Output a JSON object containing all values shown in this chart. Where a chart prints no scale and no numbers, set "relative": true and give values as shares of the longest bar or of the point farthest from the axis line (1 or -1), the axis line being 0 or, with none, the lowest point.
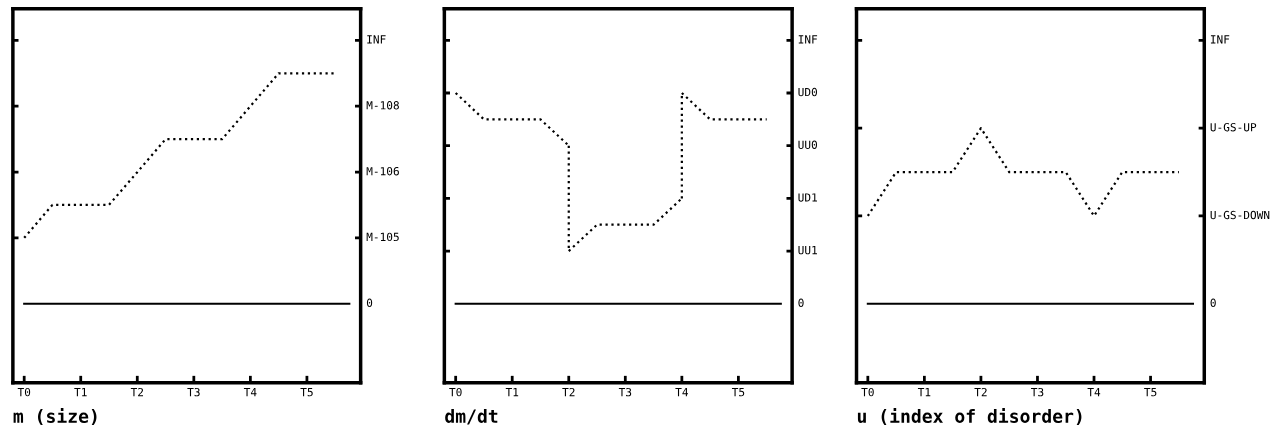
{
  "chart_data": [
    {
      "type": "line",
      "title": "m (size)",
      "relative": true,
      "categories": [
        "T0",
        null,
        "T1",
        null,
        "T2",
        null,
        "T3",
        null,
        "T4",
        null,
        "T5",
        null
      ],
      "series": [
        {
          "color": "#000000",
          "values": [
            0.286,
            0.429,
            0.429,
            0.429,
            0.571,
            0.714,
            0.714,
            0.714,
            0.857,
            1,
            1,
            1
          ]
        }
      ],
      "ref_lines": [
        {
          "axis": "y",
          "value": 0,
          "label": "0",
          "color": "#000000",
          "line_style": "solid"
        },
        {
          "axis": "y",
          "value": 0.286,
          "label": "M-105",
          "color": "#000000"
        },
        {
          "axis": "y",
          "value": 0.571,
          "label": "M-106",
          "color": "#000000"
        },
        {
          "axis": "y",
          "value": 0.857,
          "label": "M-108",
          "color": "#000000"
        },
        {
          "axis": "y",
          "value": 1.143,
          "label": "INF",
          "color": "#000000"
        }
      ],
      "line_style": "dotted",
      "grid": false
    },
    {
      "type": "line",
      "title": "dm/dt",
      "relative": true,
      "categories": [
        "T0",
        null,
        "T1",
        null,
        "T2",
        null,
        "T3",
        null,
        "T4",
        null,
        "T5",
        null
      ],
      "series": [
        {
          "color": "#000000",
          "values": [
            1,
            0.875,
            0.875,
            0.875,
            0.75,
            null,
            null,
            null,
            null,
            null,
            null,
            null
          ]
        },
        {
          "color": "#000000",
          "values": [
            null,
            null,
            null,
            null,
            0.25,
            0.375,
            0.375,
            0.375,
            0.5,
            null,
            null,
            null
          ]
        },
        {
          "color": "#000000",
          "values": [
            null,
            null,
            null,
            null,
            null,
            null,
            null,
            null,
            1,
            0.875,
            0.875,
            0.875
          ]
        }
      ],
      "ref_lines": [
        {
          "axis": "y",
          "value": 0,
          "label": "0",
          "color": "#000000",
          "line_style": "solid"
        },
        {
          "axis": "y",
          "value": 0.25,
          "label": "UU1",
          "color": "#000000"
        },
        {
          "axis": "y",
          "value": 0.5,
          "label": "UD1",
          "color": "#000000"
        },
        {
          "axis": "y",
          "value": 0.75,
          "label": "UU0",
          "color": "#000000"
        },
        {
          "axis": "y",
          "value": 1,
          "label": "UD0",
          "color": "#000000"
        },
        {
          "axis": "y",
          "value": 1.25,
          "label": "INF",
          "color": "#000000"
        }
      ],
      "line_style": "dotted",
      "grid": false
    },
    {
      "type": "line",
      "title": "u (index of disorder)",
      "relative": true,
      "categories": [
        "T0",
        null,
        "T1",
        null,
        "T2",
        null,
        "T3",
        null,
        "T4",
        null,
        "T5",
        null
      ],
      "series": [
        {
          "color": "#000000",
          "values": [
            0.5,
            0.75,
            0.75,
            0.75,
            1,
            0.75,
            0.75,
            0.75,
            0.5,
            0.75,
            0.75,
            0.75
          ]
        }
      ],
      "ref_lines": [
        {
          "axis": "y",
          "value": 0,
          "label": "0",
          "color": "#000000",
          "line_style": "solid"
        },
        {
          "axis": "y",
          "value": 0.5,
          "label": "U-GS-DOWN",
          "color": "#000000"
        },
        {
          "axis": "y",
          "value": 1,
          "label": "U-GS-UP",
          "color": "#000000"
        },
        {
          "axis": "y",
          "value": 1.5,
          "label": "INF",
          "color": "#000000"
        }
      ],
      "line_style": "dotted",
      "grid": false
    }
  ]
}
